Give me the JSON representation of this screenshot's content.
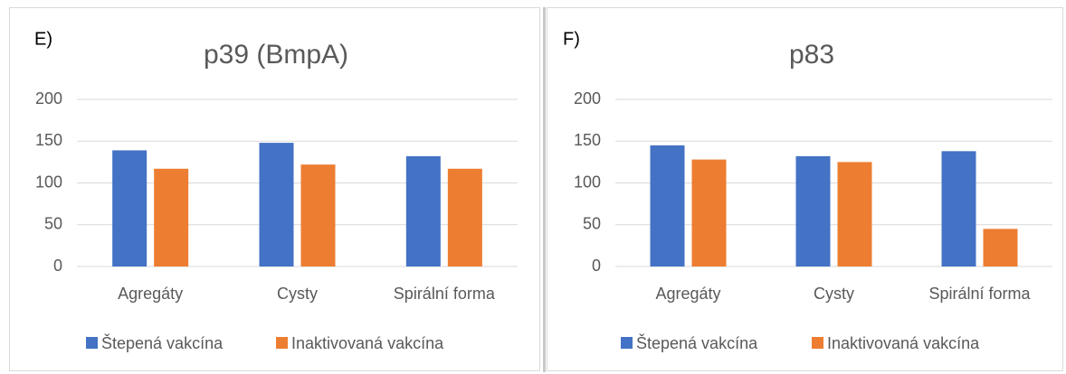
{
  "chart_data": [
    {
      "type": "bar",
      "label": "E)",
      "title": "p39 (BmpA)",
      "categories": [
        "Agregáty",
        "Cysty",
        "Spirální forma"
      ],
      "series": [
        {
          "name": "Štepená vakcína",
          "color": "#4472c4",
          "values": [
            139,
            148,
            132
          ]
        },
        {
          "name": "Inaktivovaná vakcína",
          "color": "#ed7d31",
          "values": [
            117,
            122,
            117
          ]
        }
      ],
      "ylim": [
        0,
        200
      ],
      "yticks": [
        0,
        50,
        100,
        150,
        200
      ],
      "grid": true,
      "legend": "bottom"
    },
    {
      "type": "bar",
      "label": "F)",
      "title": "p83",
      "categories": [
        "Agregáty",
        "Cysty",
        "Spirální forma"
      ],
      "series": [
        {
          "name": "Štepená vakcína",
          "color": "#4472c4",
          "values": [
            145,
            132,
            138
          ]
        },
        {
          "name": "Inaktivovaná vakcína",
          "color": "#ed7d31",
          "values": [
            128,
            125,
            45
          ]
        }
      ],
      "ylim": [
        0,
        200
      ],
      "yticks": [
        0,
        50,
        100,
        150,
        200
      ],
      "grid": true,
      "legend": "bottom"
    }
  ]
}
